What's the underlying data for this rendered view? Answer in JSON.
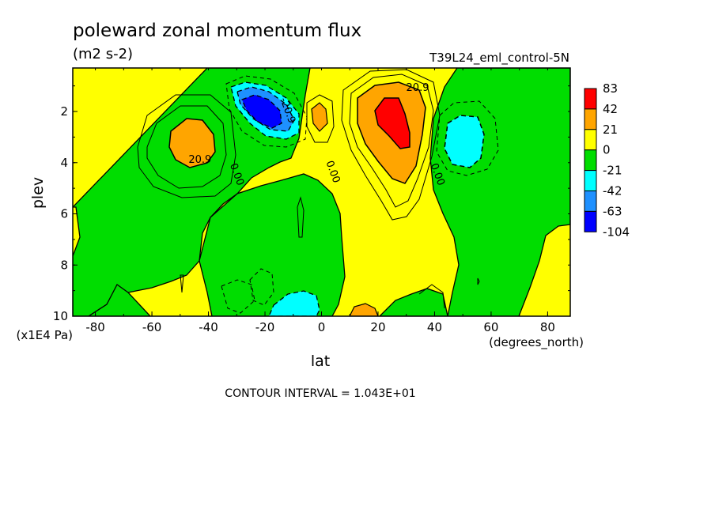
{
  "chart_data": {
    "type": "heatmap",
    "title": "poleward zonal momentum flux",
    "units": "(m2 s-2)",
    "run_label": "T39L24_eml_control-5N",
    "xlabel": "lat",
    "xunits": "(degrees_north)",
    "ylabel": "plev",
    "yunits": "(x1E4 Pa)",
    "xlim": [
      -88,
      88
    ],
    "ylim": [
      10,
      0.3
    ],
    "x_ticks": [
      -80,
      -60,
      -40,
      -20,
      0,
      20,
      40,
      60,
      80
    ],
    "y_ticks": [
      2,
      4,
      6,
      8,
      10
    ],
    "footer": "CONTOUR INTERVAL = 1.043E+01",
    "contour_labels": [
      {
        "text": "20.9",
        "lat": -43,
        "plev": 4.0
      },
      {
        "text": "0.00",
        "lat": -31,
        "plev": 4.5
      },
      {
        "text": "-20.9",
        "lat": -13,
        "plev": 2.0
      },
      {
        "text": "0.00",
        "lat": 3,
        "plev": 4.4
      },
      {
        "text": "20.9",
        "lat": 34,
        "plev": 1.2
      },
      {
        "text": "0.00",
        "lat": 40,
        "plev": 4.5
      }
    ],
    "colorbar": {
      "levels": [
        "83",
        "42",
        "21",
        "0",
        "-21",
        "-42",
        "-63",
        "-104"
      ],
      "colors": [
        "#ff0000",
        "#ffa500",
        "#ffff00",
        "#00dd00",
        "#00ffff",
        "#1e90ff",
        "#0000ff"
      ]
    },
    "regions": [
      {
        "name": "background",
        "value_range": [
          0,
          21
        ],
        "color": "#ffff00"
      },
      {
        "name": "green-band-sh",
        "value_range": [
          -21,
          0
        ],
        "color": "#00dd00"
      },
      {
        "name": "green-band-nh",
        "value_range": [
          -21,
          0
        ],
        "color": "#00dd00"
      },
      {
        "name": "orange-max-sh",
        "center": [
          -48,
          3.0
        ],
        "value_range": [
          21,
          42
        ],
        "color": "#ffa500"
      },
      {
        "name": "orange-max-nh",
        "center": [
          25,
          2.8
        ],
        "value_range": [
          21,
          42
        ],
        "color": "#ffa500"
      },
      {
        "name": "red-max-nh",
        "center": [
          23,
          2.0
        ],
        "value_range": [
          42,
          83
        ],
        "color": "#ff0000"
      },
      {
        "name": "cyan-min-sh",
        "center": [
          -22,
          1.8
        ],
        "value_range": [
          -42,
          -21
        ],
        "color": "#00ffff"
      },
      {
        "name": "blue-min-sh",
        "center": [
          -21,
          1.9
        ],
        "value_range": [
          -63,
          -42
        ],
        "color": "#1e90ff"
      },
      {
        "name": "darkblue-min-sh",
        "center": [
          -20,
          1.9
        ],
        "value_range": [
          -104,
          -63
        ],
        "color": "#0000ff"
      },
      {
        "name": "cyan-min-nh",
        "center": [
          50,
          3.0
        ],
        "value_range": [
          -42,
          -21
        ],
        "color": "#00ffff"
      },
      {
        "name": "cyan-min-surface",
        "center": [
          -6,
          9.5
        ],
        "value_range": [
          -42,
          -21
        ],
        "color": "#00ffff"
      },
      {
        "name": "orange-surface-nh",
        "center": [
          16,
          9.8
        ],
        "value_range": [
          21,
          42
        ],
        "color": "#ffa500"
      }
    ]
  }
}
